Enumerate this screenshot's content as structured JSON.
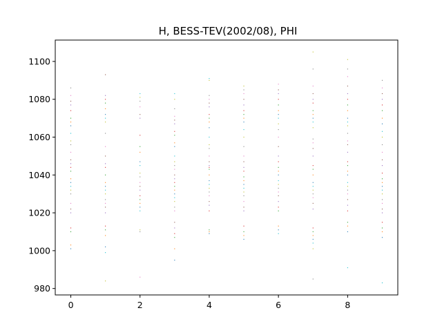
{
  "chart_data": {
    "type": "scatter",
    "title": "H, BESS-TEV(2002/08), PHI",
    "xlabel": "",
    "ylabel": "",
    "xlim": [
      -0.45,
      9.45
    ],
    "ylim": [
      976.6,
      1111.3
    ],
    "x_ticks": [
      0,
      2,
      4,
      6,
      8
    ],
    "y_ticks": [
      980,
      1000,
      1020,
      1040,
      1060,
      1080,
      1100
    ],
    "grid": false,
    "legend": "none",
    "marker": "tiny dots (pixel markers), one color per point",
    "palette": [
      "#1f77b4",
      "#ff7f0e",
      "#2ca02c",
      "#d62728",
      "#9467bd",
      "#8c564b",
      "#e377c2",
      "#7f7f7f",
      "#bcbd22",
      "#17becf"
    ],
    "x": [
      0,
      1,
      2,
      3,
      4,
      5,
      6,
      7,
      8,
      9
    ],
    "points_by_x": [
      [
        1001,
        1003,
        1010,
        1012,
        1020,
        1022,
        1025,
        1030,
        1032,
        1034,
        1036,
        1038,
        1042,
        1044,
        1046,
        1048,
        1052,
        1056,
        1058,
        1062,
        1066,
        1068,
        1070,
        1074,
        1077,
        1079,
        1082,
        1086
      ],
      [
        984,
        999,
        1002,
        1008,
        1011,
        1013,
        1020,
        1023,
        1025,
        1027,
        1030,
        1032,
        1034,
        1036,
        1040,
        1044,
        1046,
        1050,
        1055,
        1062,
        1068,
        1070,
        1072,
        1075,
        1078,
        1080,
        1082,
        1093
      ],
      [
        986,
        1010,
        1011,
        1021,
        1023,
        1025,
        1027,
        1029,
        1032,
        1034,
        1036,
        1039,
        1041,
        1045,
        1047,
        1052,
        1055,
        1061,
        1070,
        1072,
        1076,
        1079,
        1081,
        1083
      ],
      [
        995,
        1001,
        1007,
        1009,
        1012,
        1015,
        1021,
        1023,
        1026,
        1028,
        1030,
        1032,
        1034,
        1036,
        1038,
        1040,
        1043,
        1045,
        1047,
        1050,
        1055,
        1057,
        1061,
        1063,
        1067,
        1069,
        1071,
        1075,
        1080,
        1083
      ],
      [
        1009,
        1010,
        1011,
        1021,
        1024,
        1026,
        1029,
        1031,
        1033,
        1035,
        1037,
        1040,
        1043,
        1044,
        1045,
        1047,
        1050,
        1054,
        1056,
        1060,
        1065,
        1068,
        1070,
        1072,
        1076,
        1078,
        1080,
        1082,
        1090,
        1091
      ],
      [
        1006,
        1008,
        1010,
        1013,
        1021,
        1023,
        1026,
        1029,
        1031,
        1033,
        1035,
        1037,
        1039,
        1042,
        1044,
        1047,
        1050,
        1055,
        1060,
        1064,
        1068,
        1070,
        1072,
        1074,
        1077,
        1080,
        1083,
        1085,
        1087
      ],
      [
        1009,
        1011,
        1013,
        1021,
        1023,
        1026,
        1029,
        1031,
        1033,
        1035,
        1037,
        1040,
        1042,
        1044,
        1047,
        1050,
        1055,
        1060,
        1064,
        1067,
        1070,
        1072,
        1074,
        1077,
        1080,
        1083,
        1085,
        1088
      ],
      [
        985,
        1001,
        1004,
        1006,
        1008,
        1010,
        1012,
        1022,
        1025,
        1028,
        1030,
        1032,
        1034,
        1036,
        1040,
        1043,
        1045,
        1050,
        1054,
        1057,
        1059,
        1065,
        1068,
        1070,
        1072,
        1074,
        1078,
        1080,
        1083,
        1087,
        1096,
        1105
      ],
      [
        991,
        1010,
        1013,
        1015,
        1021,
        1024,
        1027,
        1030,
        1032,
        1034,
        1036,
        1040,
        1042,
        1045,
        1047,
        1052,
        1056,
        1058,
        1062,
        1066,
        1068,
        1070,
        1074,
        1077,
        1080,
        1083,
        1087,
        1092,
        1096,
        1101
      ],
      [
        983,
        1007,
        1010,
        1012,
        1015,
        1020,
        1022,
        1025,
        1027,
        1030,
        1032,
        1034,
        1036,
        1038,
        1041,
        1045,
        1048,
        1052,
        1056,
        1060,
        1063,
        1067,
        1070,
        1074,
        1077,
        1080,
        1083,
        1086,
        1090
      ]
    ]
  }
}
